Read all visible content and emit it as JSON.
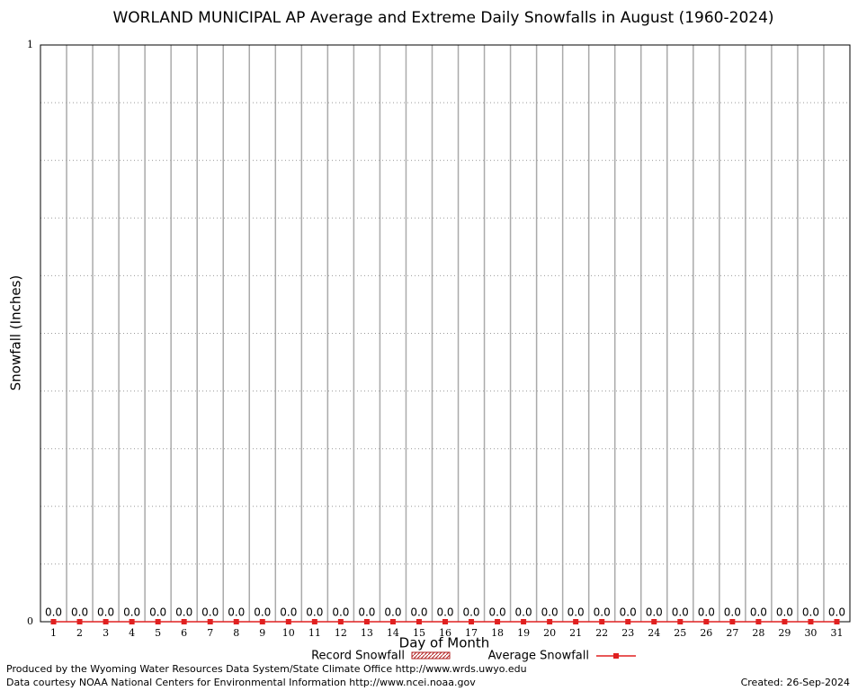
{
  "chart_data": {
    "type": "bar",
    "title": "WORLAND MUNICIPAL AP Average and Extreme Daily Snowfalls in August (1960-2024)",
    "x_label": "Day of Month",
    "y_label": "Snowfall (Inches)",
    "categories": [
      "1",
      "2",
      "3",
      "4",
      "5",
      "6",
      "7",
      "8",
      "9",
      "10",
      "11",
      "12",
      "13",
      "14",
      "15",
      "16",
      "17",
      "18",
      "19",
      "20",
      "21",
      "22",
      "23",
      "24",
      "25",
      "26",
      "27",
      "28",
      "29",
      "30",
      "31"
    ],
    "series": [
      {
        "name": "Record Snowfall",
        "type": "bar",
        "color": "#b22222",
        "values": [
          0,
          0,
          0,
          0,
          0,
          0,
          0,
          0,
          0,
          0,
          0,
          0,
          0,
          0,
          0,
          0,
          0,
          0,
          0,
          0,
          0,
          0,
          0,
          0,
          0,
          0,
          0,
          0,
          0,
          0,
          0
        ]
      },
      {
        "name": "Average Snowfall",
        "type": "line",
        "color": "#e02020",
        "values": [
          0,
          0,
          0,
          0,
          0,
          0,
          0,
          0,
          0,
          0,
          0,
          0,
          0,
          0,
          0,
          0,
          0,
          0,
          0,
          0,
          0,
          0,
          0,
          0,
          0,
          0,
          0,
          0,
          0,
          0,
          0
        ],
        "value_labels": [
          "0.0",
          "0.0",
          "0.0",
          "0.0",
          "0.0",
          "0.0",
          "0.0",
          "0.0",
          "0.0",
          "0.0",
          "0.0",
          "0.0",
          "0.0",
          "0.0",
          "0.0",
          "0.0",
          "0.0",
          "0.0",
          "0.0",
          "0.0",
          "0.0",
          "0.0",
          "0.0",
          "0.0",
          "0.0",
          "0.0",
          "0.0",
          "0.0",
          "0.0",
          "0.0",
          "0.0"
        ]
      }
    ],
    "ylim": [
      0,
      1
    ],
    "yticks": [
      0,
      1
    ],
    "ygrid": [
      0.1,
      0.2,
      0.3,
      0.4,
      0.5,
      0.6,
      0.7,
      0.8,
      0.9
    ],
    "grid": true,
    "legend": "bottom",
    "footer_left": [
      "Produced by the Wyoming Water Resources Data System/State Climate Office http://www.wrds.uwyo.edu",
      "Data courtesy NOAA National Centers for Environmental Information http://www.ncei.noaa.gov"
    ],
    "footer_right": "Created: 26-Sep-2024"
  }
}
